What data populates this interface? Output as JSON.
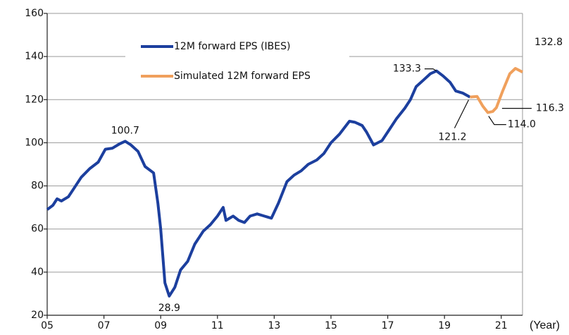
{
  "chart_data": {
    "type": "line",
    "x_label": "(Year)",
    "xlim": [
      2005,
      2021.75
    ],
    "xticks": [
      {
        "value": 2005,
        "label": "05"
      },
      {
        "value": 2007,
        "label": "07"
      },
      {
        "value": 2009,
        "label": "09"
      },
      {
        "value": 2011,
        "label": "11"
      },
      {
        "value": 2013,
        "label": "13"
      },
      {
        "value": 2015,
        "label": "15"
      },
      {
        "value": 2017,
        "label": "17"
      },
      {
        "value": 2019,
        "label": "19"
      },
      {
        "value": 2021,
        "label": "21"
      }
    ],
    "ylim": [
      20,
      160
    ],
    "yticks": [
      20,
      40,
      60,
      80,
      100,
      120,
      140,
      160
    ],
    "grid": true,
    "series": [
      {
        "name": "12M forward EPS (IBES)",
        "color": "#1c3f9e",
        "x": [
          2005.0,
          2005.2,
          2005.35,
          2005.5,
          2005.75,
          2005.9,
          2006.2,
          2006.5,
          2006.8,
          2007.05,
          2007.3,
          2007.55,
          2007.75,
          2007.95,
          2008.2,
          2008.45,
          2008.75,
          2008.9,
          2009.0,
          2009.15,
          2009.3,
          2009.5,
          2009.7,
          2009.95,
          2010.2,
          2010.5,
          2010.75,
          2011.0,
          2011.2,
          2011.3,
          2011.55,
          2011.75,
          2011.95,
          2012.15,
          2012.4,
          2012.65,
          2012.9,
          2013.15,
          2013.45,
          2013.7,
          2013.95,
          2014.2,
          2014.5,
          2014.75,
          2015.0,
          2015.3,
          2015.65,
          2015.85,
          2016.1,
          2016.25,
          2016.5,
          2016.8,
          2017.05,
          2017.3,
          2017.6,
          2017.8,
          2018.0,
          2018.25,
          2018.5,
          2018.72,
          2018.95,
          2019.2,
          2019.4,
          2019.65,
          2019.9
        ],
        "values": [
          69,
          71,
          74,
          73,
          75,
          78,
          84,
          88,
          91,
          97,
          97.5,
          99.5,
          100.7,
          99,
          96,
          89,
          86,
          72,
          60,
          35,
          28.9,
          33,
          41,
          45,
          53,
          59,
          62,
          66,
          70,
          64,
          66,
          64,
          63,
          66,
          67,
          66,
          65,
          72,
          82,
          85,
          87,
          90,
          92,
          95,
          100,
          104,
          110,
          109.5,
          108,
          105,
          99,
          101,
          106,
          111,
          116,
          120,
          126,
          129,
          132,
          133.3,
          131,
          128,
          124,
          123,
          121.2
        ],
        "value_labels": [
          null,
          null,
          null,
          null,
          null,
          null,
          null,
          null,
          null,
          null,
          null,
          null,
          "100.7",
          null,
          null,
          null,
          null,
          null,
          null,
          null,
          "28.9",
          null,
          null,
          null,
          null,
          null,
          null,
          null,
          null,
          null,
          null,
          null,
          null,
          null,
          null,
          null,
          null,
          null,
          null,
          null,
          null,
          null,
          null,
          null,
          null,
          null,
          null,
          null,
          null,
          null,
          null,
          null,
          null,
          null,
          null,
          null,
          null,
          null,
          null,
          "133.3",
          null,
          null,
          null,
          null,
          "121.2"
        ]
      },
      {
        "name": "Simulated 12M forward EPS",
        "color": "#f0a05c",
        "x": [
          2019.9,
          2020.15,
          2020.35,
          2020.53,
          2020.7,
          2020.83,
          2021.05,
          2021.3,
          2021.5,
          2021.75
        ],
        "values": [
          121.2,
          121.5,
          117,
          114,
          114.5,
          116.3,
          124,
          132,
          134.5,
          132.8
        ],
        "value_labels": [
          null,
          null,
          null,
          "114.0",
          null,
          "116.3",
          null,
          null,
          null,
          "132.8"
        ]
      }
    ]
  }
}
